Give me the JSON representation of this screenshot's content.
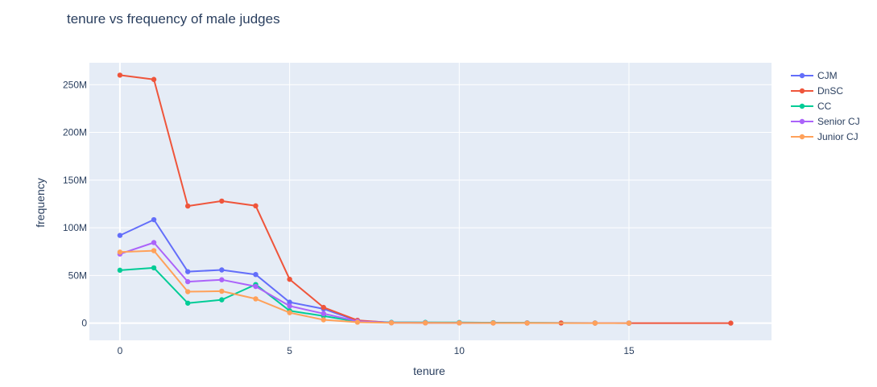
{
  "chart_data": {
    "type": "line",
    "title": "tenure vs frequency of male judges",
    "xlabel": "tenure",
    "ylabel": "frequency",
    "xlim": [
      -0.9,
      19.2
    ],
    "ylim": [
      -18000000,
      273000000
    ],
    "xticks": [
      0,
      5,
      10,
      15
    ],
    "xtick_labels": [
      "0",
      "5",
      "10",
      "15"
    ],
    "yticks": [
      0,
      50000000,
      100000000,
      150000000,
      200000000,
      250000000
    ],
    "ytick_labels": [
      "0",
      "50M",
      "100M",
      "150M",
      "200M",
      "250M"
    ],
    "grid": true,
    "legend_position": "top-right",
    "colors": {
      "background": "#e5ecf6",
      "grid": "#ffffff",
      "text": "#2a3f5f"
    },
    "series": [
      {
        "name": "CJM",
        "color": "#636efa",
        "x": [
          0,
          1,
          2,
          3,
          4,
          5,
          6,
          7,
          8,
          9,
          10,
          11,
          12,
          14,
          15
        ],
        "y": [
          92000000,
          108500000,
          54000000,
          55800000,
          51000000,
          22000000,
          15000000,
          2500000,
          800000,
          600000,
          500000,
          400000,
          200000,
          150000,
          100000
        ]
      },
      {
        "name": "DnSC",
        "color": "#ef553b",
        "x": [
          0,
          1,
          2,
          3,
          4,
          5,
          6,
          7,
          8,
          9,
          10,
          11,
          12,
          13,
          14,
          15,
          18
        ],
        "y": [
          260000000,
          255500000,
          122800000,
          128000000,
          123000000,
          46000000,
          16500000,
          3000000,
          500000,
          400000,
          300000,
          250000,
          200000,
          150000,
          100000,
          80000,
          50000
        ]
      },
      {
        "name": "CC",
        "color": "#00cc96",
        "x": [
          0,
          1,
          2,
          3,
          4,
          5,
          6,
          7,
          8,
          9,
          10,
          11,
          12,
          14,
          15
        ],
        "y": [
          55500000,
          58000000,
          21000000,
          24500000,
          40500000,
          13000000,
          7500000,
          1500000,
          800000,
          800000,
          700000,
          500000,
          300000,
          150000,
          100000
        ]
      },
      {
        "name": "Senior CJ",
        "color": "#ab63fa",
        "x": [
          0,
          1,
          2,
          3,
          4,
          5,
          6,
          7,
          8,
          9,
          10,
          11,
          12,
          14,
          15
        ],
        "y": [
          72500000,
          84500000,
          43500000,
          45500000,
          38500000,
          18000000,
          10000000,
          2000000,
          500000,
          400000,
          300000,
          200000,
          150000,
          100000,
          80000
        ]
      },
      {
        "name": "Junior CJ",
        "color": "#ffa15a",
        "x": [
          0,
          1,
          2,
          3,
          4,
          5,
          6,
          7,
          8,
          9,
          10,
          11,
          12,
          14,
          15
        ],
        "y": [
          74500000,
          76000000,
          33000000,
          33500000,
          25500000,
          11000000,
          3500000,
          1000000,
          400000,
          300000,
          200000,
          150000,
          100000,
          80000,
          50000
        ]
      }
    ]
  }
}
